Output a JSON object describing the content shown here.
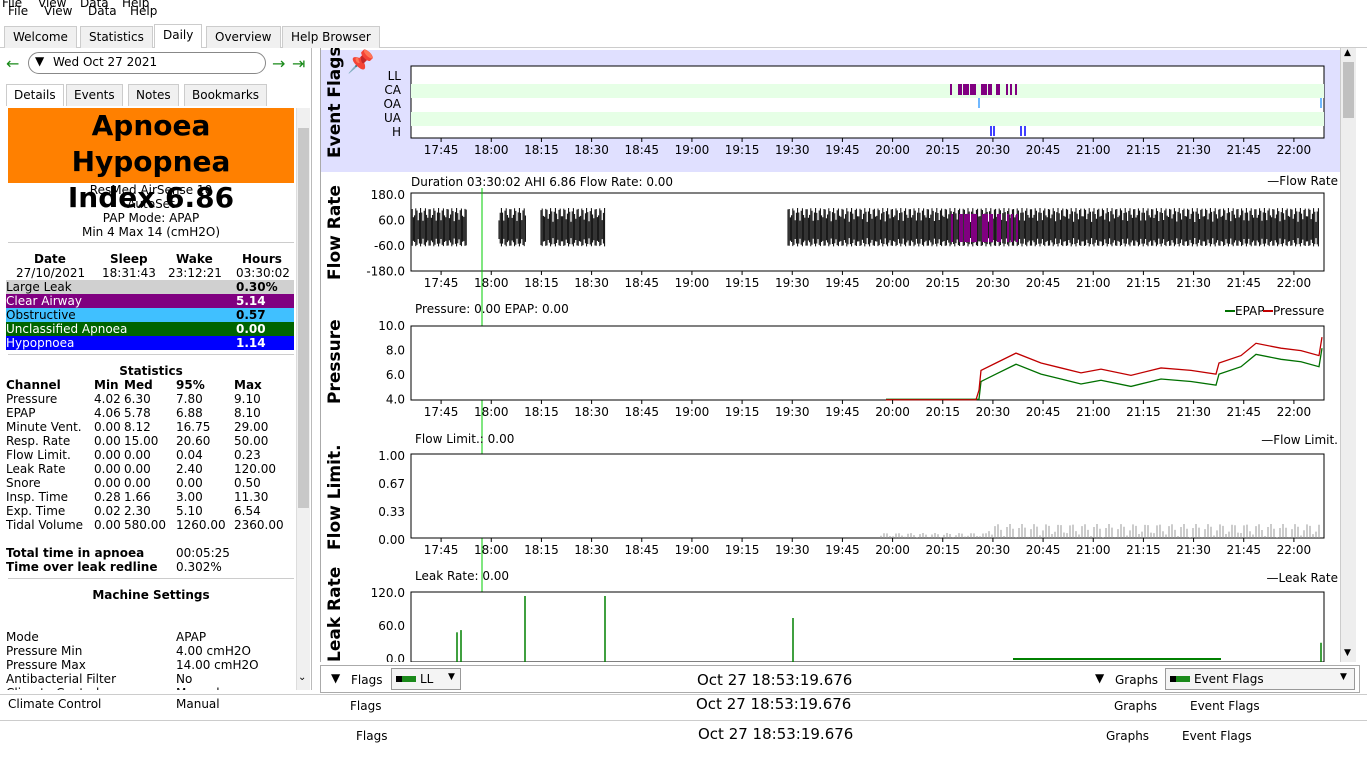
{
  "menu": {
    "file": "File",
    "view": "View",
    "data": "Data",
    "help": "Help"
  },
  "tabs": [
    "Welcome",
    "Statistics",
    "Daily",
    "Overview",
    "Help Browser"
  ],
  "date": "Wed Oct 27 2021",
  "subtabs": [
    "Details",
    "Events",
    "Notes",
    "Bookmarks"
  ],
  "ahi": {
    "line1": "Apnoea Hypopnea",
    "line2": "Index 6.86",
    "color": "#ff8000"
  },
  "machine": {
    "model": "ResMed AirSense 10",
    "variant": "AutoSet",
    "mode": "PAP Mode: APAP",
    "range": "Min 4 Max 14 (cmH2O)"
  },
  "session": {
    "headers": [
      "Date",
      "Sleep",
      "Wake",
      "Hours"
    ],
    "values": [
      "27/10/2021",
      "18:31:43",
      "23:12:21",
      "03:30:02"
    ]
  },
  "events": [
    {
      "label": "Large Leak",
      "value": "0.30%",
      "color": "#d0d0d0"
    },
    {
      "label": "Clear Airway",
      "value": "5.14",
      "color": "#800080"
    },
    {
      "label": "Obstructive",
      "value": "0.57",
      "color": "#40c0ff"
    },
    {
      "label": "Unclassified Apnoea",
      "value": "0.00",
      "color": "#006400"
    },
    {
      "label": "Hypopnoea",
      "value": "1.14",
      "color": "#0000ff"
    }
  ],
  "statistics": {
    "title": "Statistics",
    "headers": [
      "Channel",
      "Min",
      "Med",
      "95%",
      "Max"
    ],
    "rows": [
      [
        "Pressure",
        "4.02",
        "6.30",
        "7.80",
        "9.10"
      ],
      [
        "EPAP",
        "4.06",
        "5.78",
        "6.88",
        "8.10"
      ],
      [
        "Minute Vent.",
        "0.00",
        "8.12",
        "16.75",
        "29.00"
      ],
      [
        "Resp. Rate",
        "0.00",
        "15.00",
        "20.60",
        "50.00"
      ],
      [
        "Flow Limit.",
        "0.00",
        "0.00",
        "0.04",
        "0.23"
      ],
      [
        "Leak Rate",
        "0.00",
        "0.00",
        "2.40",
        "120.00"
      ],
      [
        "Snore",
        "0.00",
        "0.00",
        "0.00",
        "0.50"
      ],
      [
        "Insp. Time",
        "0.28",
        "1.66",
        "3.00",
        "11.30"
      ],
      [
        "Exp. Time",
        "0.02",
        "2.30",
        "5.10",
        "6.54"
      ],
      [
        "Tidal Volume",
        "0.00",
        "580.00",
        "1260.00",
        "2360.00"
      ]
    ]
  },
  "totals": [
    {
      "label": "Total time in apnoea",
      "value": "00:05:25"
    },
    {
      "label": "Time over leak redline",
      "value": "0.302%"
    }
  ],
  "machine_settings": {
    "title": "Machine Settings",
    "rows": [
      [
        "Mode",
        "APAP"
      ],
      [
        "Pressure Min",
        "4.00 cmH2O"
      ],
      [
        "Pressure Max",
        "14.00 cmH2O"
      ],
      [
        "Antibacterial Filter",
        "No"
      ],
      [
        "Climate Control",
        "Manual"
      ]
    ]
  },
  "time_ticks": [
    "17:45",
    "18:00",
    "18:15",
    "18:30",
    "18:45",
    "19:00",
    "19:15",
    "19:30",
    "19:45",
    "20:00",
    "20:15",
    "20:30",
    "20:45",
    "21:00",
    "21:15",
    "21:30",
    "21:45",
    "22:00"
  ],
  "panels": {
    "event_flags": {
      "label": "Event Flags",
      "rows": [
        "LL",
        "CA",
        "OA",
        "UA",
        "H"
      ]
    },
    "flow_rate": {
      "label": "Flow Rate",
      "info": "Duration 03:30:02 AHI 6.86 Flow Rate: 0.00",
      "legend": "Flow Rate",
      "yticks": [
        "180.0",
        "60.0",
        "-60.0",
        "-180.0"
      ]
    },
    "pressure": {
      "label": "Pressure",
      "info": "Pressure: 0.00 EPAP: 0.00",
      "legend_epap": "EPAP",
      "legend_pressure": "Pressure",
      "yticks": [
        "10.0",
        "8.0",
        "6.0",
        "4.0"
      ]
    },
    "flow_limit": {
      "label": "Flow Limit.",
      "info": "Flow Limit.: 0.00",
      "legend": "Flow Limit.",
      "yticks": [
        "1.00",
        "0.67",
        "0.33",
        "0.00"
      ]
    },
    "leak_rate": {
      "label": "Leak Rate",
      "info": "Leak Rate: 0.00",
      "legend": "Leak Rate",
      "yticks": [
        "120.0",
        "60.0",
        "0.0"
      ]
    }
  },
  "bottom": {
    "flags_label": "Flags",
    "flags_value": "LL",
    "timestamp": "Oct 27 18:53:19.676",
    "graphs_label": "Graphs",
    "graphs_value": "Event Flags"
  },
  "colors": {
    "epap": "#007000",
    "pressure": "#c00000",
    "leak": "#008000",
    "flowlimit": "#999999",
    "flags_bg": "#e0e0ff",
    "cursor": "#00cc00"
  }
}
